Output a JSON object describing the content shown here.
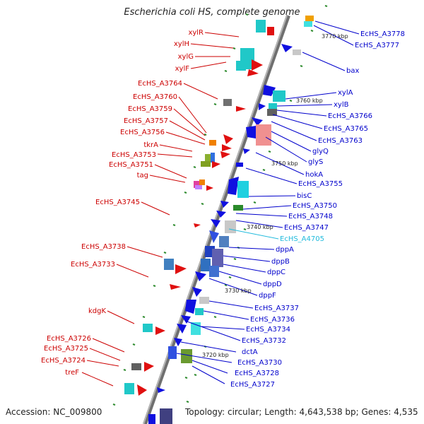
{
  "title": "Escherichia coli HS, complete genome",
  "footer": {
    "accession": "Accession: NC_009800",
    "summary": "Topology: circular; Length: 4,643,538 bp; Genes: 4,535"
  },
  "scale_labels": [
    "3770 kbp",
    "3760 kbp",
    "3750 kbp",
    "3740 kbp",
    "3730 kbp",
    "3720 kbp"
  ],
  "colors": {
    "left_label": "#cc0000",
    "right_label": "#0000cc",
    "highlight_label": "#22bbdd",
    "axis": "#888888"
  },
  "left_genes": [
    "xylR",
    "xylH",
    "xylG",
    "xylF",
    "EcHS_A3764",
    "EcHS_A3760",
    "EcHS_A3759",
    "EcHS_A3757",
    "EcHS_A3756",
    "tkrA",
    "EcHS_A3753",
    "EcHS_A3751",
    "tag",
    "EcHS_A3745",
    "EcHS_A3738",
    "EcHS_A3733",
    "kdgK",
    "EcHS_A3726",
    "EcHS_A3725",
    "EcHS_A3724",
    "treF"
  ],
  "right_genes": [
    "EcHS_A3778",
    "EcHS_A3777",
    "bax",
    "xylA",
    "xylB",
    "EcHS_A3766",
    "EcHS_A3765",
    "EcHS_A3763",
    "glyQ",
    "glyS",
    "hokA",
    "EcHS_A3755",
    "bisC",
    "EcHS_A3750",
    "EcHS_A3748",
    "EcHS_A3747",
    "EcHS_A4705",
    "dppA",
    "dppB",
    "dppC",
    "dppD",
    "dppF",
    "EcHS_A3737",
    "EcHS_A3736",
    "EcHS_A3734",
    "EcHS_A3732",
    "dctA",
    "EcHS_A3730",
    "EcHS_A3728",
    "EcHS_A3727"
  ]
}
